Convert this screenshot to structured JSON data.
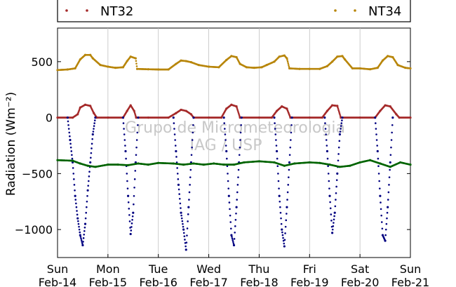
{
  "chart_data": {
    "type": "scatter",
    "title": "",
    "ylabel": "Radiation (Wm⁻²)",
    "xlabel": "",
    "ylim": [
      -1250,
      800
    ],
    "xlim": [
      0,
      7
    ],
    "yticks": [
      500,
      0,
      -500,
      -1000
    ],
    "ytick_labels": [
      "500",
      "0",
      "−500",
      "−1000"
    ],
    "xtick_labels": [
      [
        "Sun",
        "Feb-14"
      ],
      [
        "Mon",
        "Feb-15"
      ],
      [
        "Tue",
        "Feb-16"
      ],
      [
        "Wed",
        "Feb-17"
      ],
      [
        "Thu",
        "Feb-18"
      ],
      [
        "Fri",
        "Feb-19"
      ],
      [
        "Sat",
        "Feb-20"
      ],
      [
        "Sun",
        "Feb-21"
      ]
    ],
    "grid": "vertical",
    "legend_placement": "top",
    "watermark": [
      "Grupo de Micrometeorologia",
      "IAG / USP"
    ],
    "series": [
      {
        "name": "NT34",
        "color": "#b8860b",
        "points": [
          [
            0.0,
            425
          ],
          [
            0.2,
            430
          ],
          [
            0.35,
            440
          ],
          [
            0.45,
            520
          ],
          [
            0.55,
            560
          ],
          [
            0.65,
            560
          ],
          [
            0.7,
            530
          ],
          [
            0.85,
            470
          ],
          [
            1.0,
            455
          ],
          [
            1.15,
            445
          ],
          [
            1.3,
            450
          ],
          [
            1.38,
            505
          ],
          [
            1.45,
            545
          ],
          [
            1.55,
            530
          ],
          [
            1.58,
            435
          ],
          [
            1.8,
            432
          ],
          [
            2.0,
            430
          ],
          [
            2.2,
            430
          ],
          [
            2.35,
            480
          ],
          [
            2.45,
            510
          ],
          [
            2.55,
            505
          ],
          [
            2.65,
            495
          ],
          [
            2.8,
            470
          ],
          [
            3.0,
            455
          ],
          [
            3.2,
            450
          ],
          [
            3.35,
            515
          ],
          [
            3.45,
            550
          ],
          [
            3.55,
            540
          ],
          [
            3.62,
            480
          ],
          [
            3.75,
            450
          ],
          [
            3.9,
            445
          ],
          [
            4.05,
            450
          ],
          [
            4.15,
            470
          ],
          [
            4.3,
            500
          ],
          [
            4.4,
            545
          ],
          [
            4.5,
            555
          ],
          [
            4.55,
            530
          ],
          [
            4.6,
            440
          ],
          [
            4.8,
            435
          ],
          [
            5.0,
            435
          ],
          [
            5.2,
            435
          ],
          [
            5.35,
            460
          ],
          [
            5.45,
            500
          ],
          [
            5.55,
            545
          ],
          [
            5.65,
            550
          ],
          [
            5.7,
            520
          ],
          [
            5.85,
            440
          ],
          [
            6.0,
            440
          ],
          [
            6.2,
            432
          ],
          [
            6.35,
            445
          ],
          [
            6.45,
            510
          ],
          [
            6.55,
            550
          ],
          [
            6.65,
            540
          ],
          [
            6.75,
            470
          ],
          [
            6.9,
            445
          ],
          [
            7.0,
            440
          ]
        ]
      },
      {
        "name": "NT32",
        "color": "#a52a2a",
        "points": [
          [
            0.0,
            0
          ],
          [
            0.3,
            0
          ],
          [
            0.4,
            30
          ],
          [
            0.45,
            90
          ],
          [
            0.55,
            115
          ],
          [
            0.65,
            105
          ],
          [
            0.72,
            40
          ],
          [
            0.78,
            0
          ],
          [
            1.0,
            0
          ],
          [
            1.3,
            0
          ],
          [
            1.38,
            60
          ],
          [
            1.45,
            110
          ],
          [
            1.52,
            60
          ],
          [
            1.56,
            0
          ],
          [
            1.8,
            0
          ],
          [
            2.2,
            0
          ],
          [
            2.35,
            40
          ],
          [
            2.45,
            70
          ],
          [
            2.55,
            60
          ],
          [
            2.65,
            30
          ],
          [
            2.7,
            0
          ],
          [
            3.0,
            0
          ],
          [
            3.25,
            0
          ],
          [
            3.35,
            80
          ],
          [
            3.45,
            115
          ],
          [
            3.55,
            100
          ],
          [
            3.62,
            0
          ],
          [
            4.0,
            0
          ],
          [
            4.25,
            0
          ],
          [
            4.35,
            60
          ],
          [
            4.45,
            100
          ],
          [
            4.55,
            80
          ],
          [
            4.62,
            0
          ],
          [
            5.0,
            0
          ],
          [
            5.25,
            0
          ],
          [
            5.35,
            60
          ],
          [
            5.45,
            110
          ],
          [
            5.55,
            105
          ],
          [
            5.62,
            0
          ],
          [
            6.0,
            0
          ],
          [
            6.3,
            0
          ],
          [
            6.4,
            60
          ],
          [
            6.5,
            110
          ],
          [
            6.6,
            100
          ],
          [
            6.72,
            30
          ],
          [
            6.78,
            0
          ],
          [
            7.0,
            0
          ]
        ]
      },
      {
        "name": "",
        "color": "#000080",
        "points": [
          [
            0.2,
            0
          ],
          [
            0.25,
            -200
          ],
          [
            0.3,
            -400
          ],
          [
            0.35,
            -700
          ],
          [
            0.4,
            -900
          ],
          [
            0.45,
            -1050
          ],
          [
            0.5,
            -1140
          ],
          [
            0.55,
            -950
          ],
          [
            0.6,
            -650
          ],
          [
            0.65,
            -400
          ],
          [
            0.7,
            -150
          ],
          [
            0.75,
            0
          ],
          [
            1.3,
            0
          ],
          [
            1.35,
            -300
          ],
          [
            1.4,
            -700
          ],
          [
            1.45,
            -1040
          ],
          [
            1.5,
            -850
          ],
          [
            1.55,
            -400
          ],
          [
            1.6,
            0
          ],
          [
            2.3,
            0
          ],
          [
            2.35,
            -300
          ],
          [
            2.4,
            -600
          ],
          [
            2.45,
            -850
          ],
          [
            2.5,
            -1000
          ],
          [
            2.55,
            -1180
          ],
          [
            2.6,
            -800
          ],
          [
            2.65,
            -400
          ],
          [
            2.7,
            0
          ],
          [
            3.3,
            0
          ],
          [
            3.35,
            -300
          ],
          [
            3.4,
            -700
          ],
          [
            3.45,
            -1050
          ],
          [
            3.5,
            -1140
          ],
          [
            3.55,
            -800
          ],
          [
            3.6,
            -400
          ],
          [
            3.65,
            0
          ],
          [
            4.3,
            0
          ],
          [
            4.35,
            -300
          ],
          [
            4.4,
            -700
          ],
          [
            4.45,
            -1000
          ],
          [
            4.5,
            -1150
          ],
          [
            4.55,
            -800
          ],
          [
            4.6,
            -400
          ],
          [
            4.65,
            0
          ],
          [
            5.3,
            0
          ],
          [
            5.35,
            -300
          ],
          [
            5.4,
            -700
          ],
          [
            5.45,
            -1030
          ],
          [
            5.5,
            -850
          ],
          [
            5.55,
            -500
          ],
          [
            5.6,
            -150
          ],
          [
            5.65,
            0
          ],
          [
            6.3,
            0
          ],
          [
            6.35,
            -300
          ],
          [
            6.4,
            -700
          ],
          [
            6.45,
            -1050
          ],
          [
            6.5,
            -1100
          ],
          [
            6.55,
            -800
          ],
          [
            6.6,
            -400
          ],
          [
            6.65,
            0
          ]
        ]
      },
      {
        "name": "",
        "color": "#006400",
        "points": [
          [
            0.0,
            -380
          ],
          [
            0.3,
            -385
          ],
          [
            0.45,
            -410
          ],
          [
            0.6,
            -430
          ],
          [
            0.75,
            -440
          ],
          [
            1.0,
            -420
          ],
          [
            1.2,
            -420
          ],
          [
            1.4,
            -425
          ],
          [
            1.6,
            -410
          ],
          [
            1.8,
            -420
          ],
          [
            2.0,
            -405
          ],
          [
            2.3,
            -410
          ],
          [
            2.5,
            -420
          ],
          [
            2.7,
            -410
          ],
          [
            2.9,
            -420
          ],
          [
            3.1,
            -410
          ],
          [
            3.3,
            -420
          ],
          [
            3.5,
            -420
          ],
          [
            3.7,
            -400
          ],
          [
            4.0,
            -390
          ],
          [
            4.3,
            -400
          ],
          [
            4.5,
            -430
          ],
          [
            4.7,
            -410
          ],
          [
            5.0,
            -400
          ],
          [
            5.2,
            -405
          ],
          [
            5.4,
            -420
          ],
          [
            5.6,
            -440
          ],
          [
            5.8,
            -430
          ],
          [
            6.0,
            -400
          ],
          [
            6.2,
            -380
          ],
          [
            6.4,
            -410
          ],
          [
            6.6,
            -440
          ],
          [
            6.8,
            -400
          ],
          [
            7.0,
            -420
          ]
        ]
      }
    ]
  }
}
